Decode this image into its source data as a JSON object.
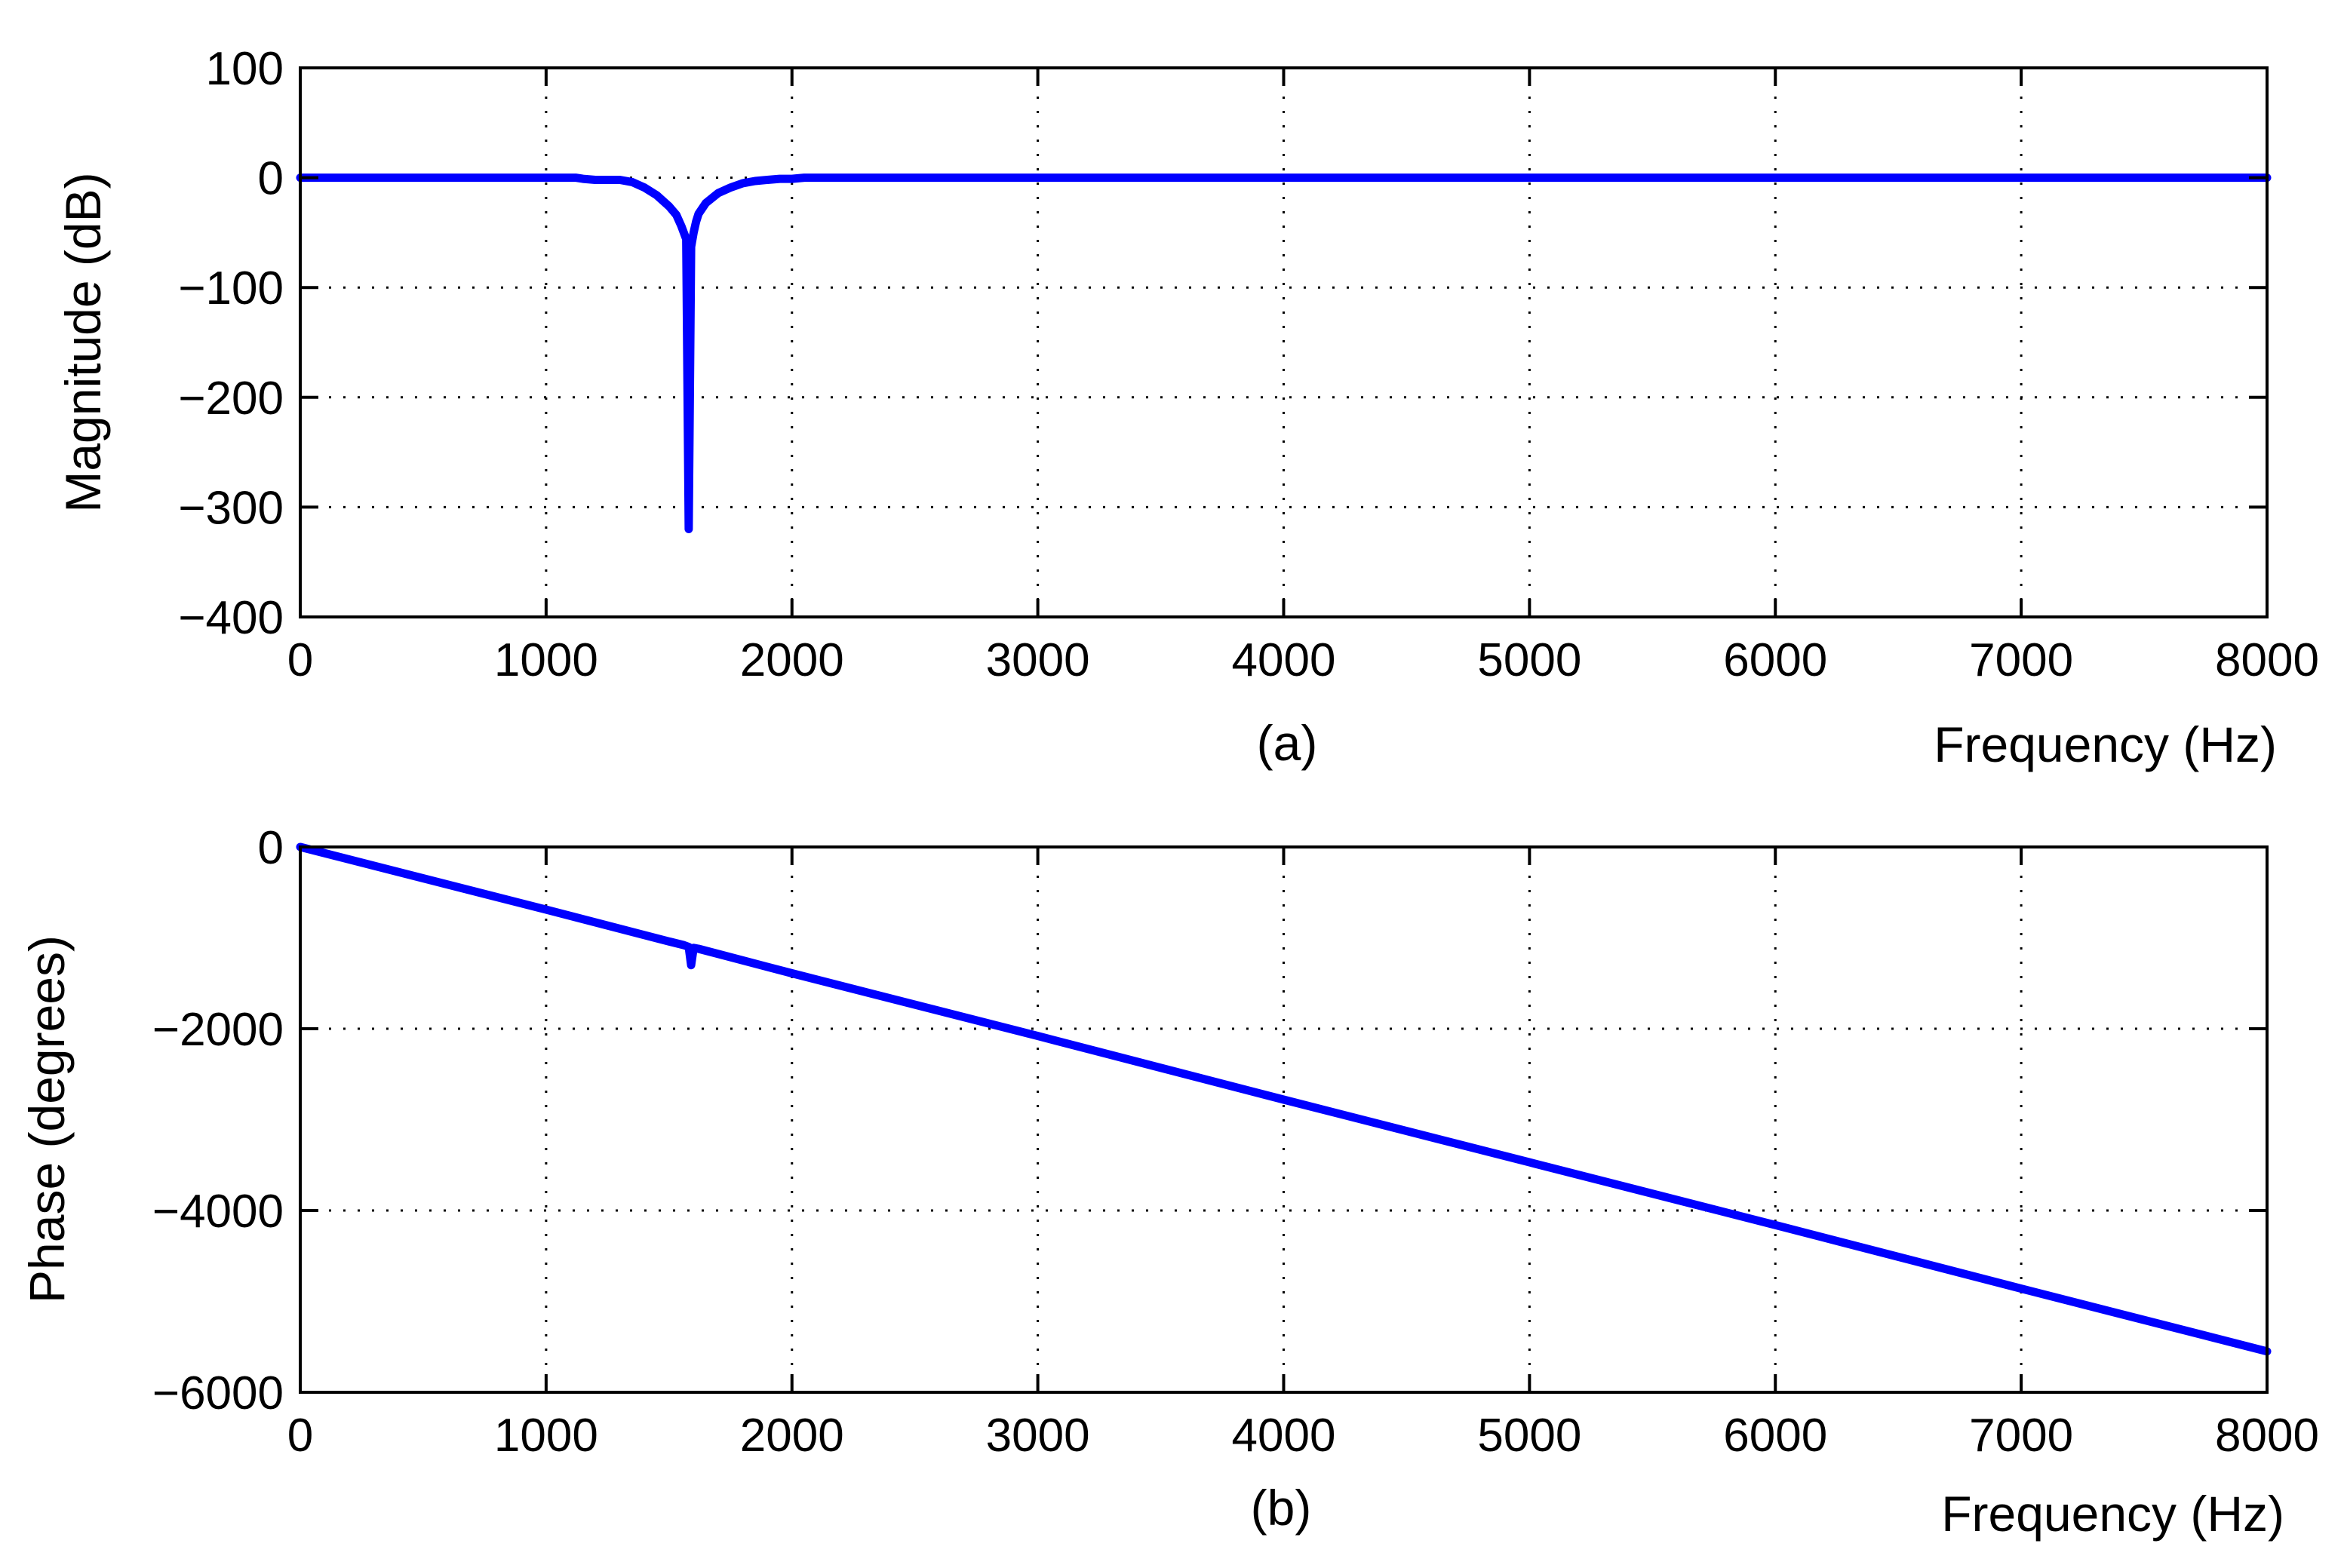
{
  "chart_data": [
    {
      "type": "line",
      "panel_label": "(a)",
      "xlabel": "Frequency (Hz)",
      "ylabel": "Magnitude (dB)",
      "xlim": [
        0,
        8000
      ],
      "ylim": [
        -400,
        100
      ],
      "xticks": [
        0,
        1000,
        2000,
        3000,
        4000,
        5000,
        6000,
        7000,
        8000
      ],
      "xtick_labels": [
        "0",
        "1000",
        "2000",
        "3000",
        "4000",
        "5000",
        "6000",
        "7000",
        "8000"
      ],
      "yticks": [
        100,
        0,
        -100,
        -200,
        -300,
        -400
      ],
      "ytick_labels": [
        "100",
        "0",
        "−100",
        "−200",
        "−300",
        "−400"
      ],
      "grid": true,
      "line_color": "#0000ff",
      "series": [
        {
          "x": [
            0,
            1000,
            1120,
            1150,
            1200,
            1300,
            1350,
            1400,
            1450,
            1500,
            1530,
            1550,
            1570,
            1580,
            1590,
            1600,
            1610,
            1620,
            1650,
            1700,
            1750,
            1800,
            1850,
            1900,
            1950,
            2000,
            2050,
            3000,
            4000,
            5000,
            6000,
            7000,
            8000
          ],
          "y": [
            0,
            0,
            0,
            -1,
            -2,
            -2,
            -4,
            -9,
            -16,
            -26,
            -34,
            -44,
            -56,
            -320,
            -63,
            -50,
            -40,
            -33,
            -23,
            -14,
            -9,
            -5,
            -3,
            -2,
            -1,
            -1,
            0,
            0,
            0,
            0,
            0,
            0,
            0
          ]
        }
      ]
    },
    {
      "type": "line",
      "panel_label": "(b)",
      "xlabel": "Frequency (Hz)",
      "ylabel": "Phase (degrees)",
      "xlim": [
        0,
        8000
      ],
      "ylim": [
        -6000,
        0
      ],
      "xticks": [
        0,
        1000,
        2000,
        3000,
        4000,
        5000,
        6000,
        7000,
        8000
      ],
      "xtick_labels": [
        "0",
        "1000",
        "2000",
        "3000",
        "4000",
        "5000",
        "6000",
        "7000",
        "8000"
      ],
      "yticks": [
        0,
        -2000,
        -4000,
        -6000
      ],
      "ytick_labels": [
        "0",
        "−2000",
        "−4000",
        "−6000"
      ],
      "grid": true,
      "line_color": "#0000ff",
      "series": [
        {
          "x": [
            0,
            1000,
            1500,
            1560,
            1580,
            1590,
            1600,
            1620,
            2000,
            3000,
            4000,
            5000,
            6000,
            7000,
            8000
          ],
          "y": [
            0,
            -690,
            -1040,
            -1080,
            -1100,
            -1300,
            -1110,
            -1120,
            -1390,
            -2080,
            -2780,
            -3470,
            -4160,
            -4860,
            -5550
          ]
        }
      ]
    }
  ]
}
